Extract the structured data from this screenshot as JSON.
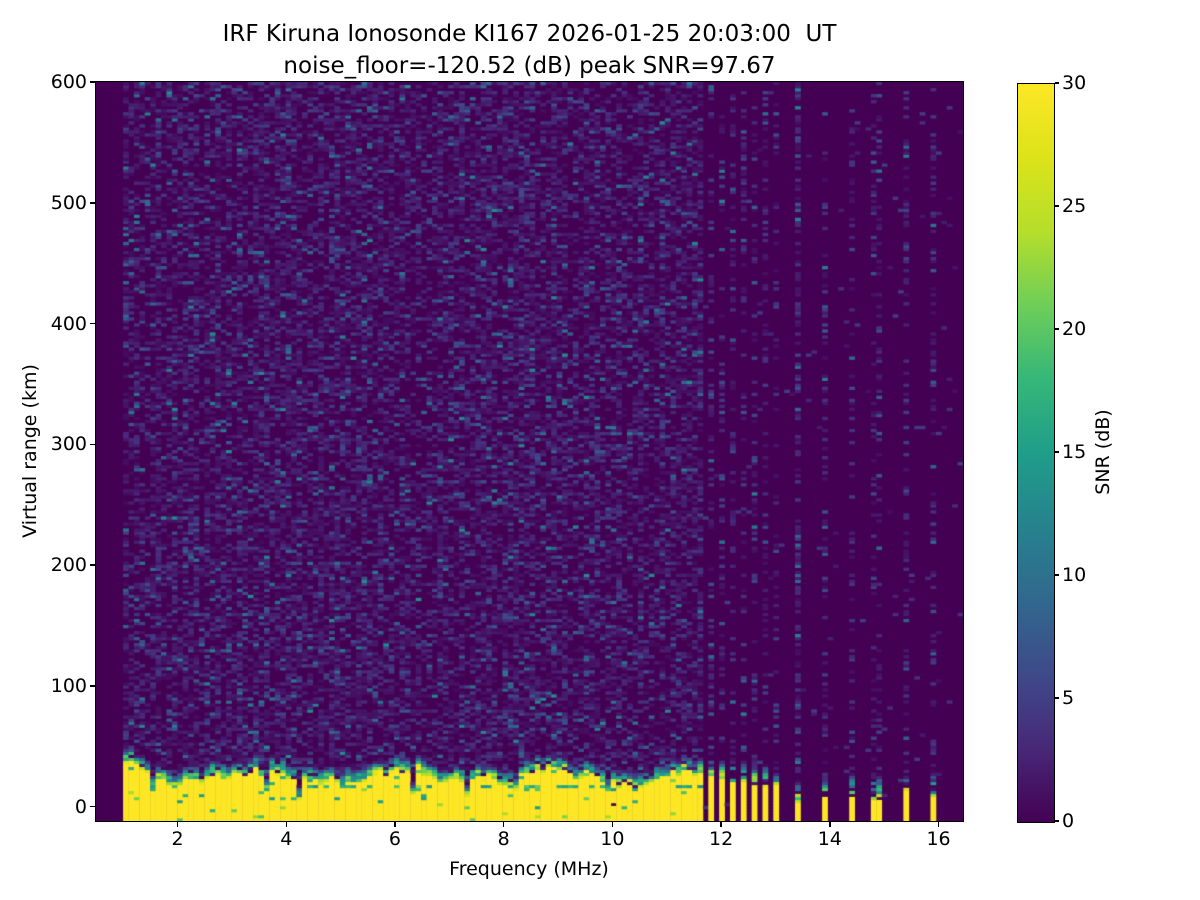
{
  "chart_data": {
    "type": "heatmap",
    "title": "IRF Kiruna Ionosonde KI167 2026-01-25 20:03:00  UT",
    "subtitle": "noise_floor=-120.52 (dB) peak SNR=97.67",
    "station": "IRF Kiruna Ionosonde KI167",
    "timestamp_ut": "2026-01-25 20:03:00 UT",
    "noise_floor_db": -120.52,
    "peak_snr_db": 97.67,
    "xlabel": "Frequency (MHz)",
    "ylabel": "Virtual range (km)",
    "colorbar_label": "SNR (dB)",
    "xlim": [
      0.5,
      16.45
    ],
    "ylim": [
      -12,
      600
    ],
    "clim": [
      0,
      30
    ],
    "x_ticks": [
      2,
      4,
      6,
      8,
      10,
      12,
      14,
      16
    ],
    "y_ticks": [
      0,
      100,
      200,
      300,
      400,
      500,
      600
    ],
    "colorbar_ticks": [
      0,
      5,
      10,
      15,
      20,
      25,
      30
    ],
    "grid": false,
    "legend": "none",
    "colorbar_position": "right",
    "colormap": "viridis",
    "viridis_stops": [
      [
        0.0,
        "#440154"
      ],
      [
        0.1,
        "#482878"
      ],
      [
        0.2,
        "#3e4a89"
      ],
      [
        0.3,
        "#31688e"
      ],
      [
        0.4,
        "#26828e"
      ],
      [
        0.5,
        "#1f9e89"
      ],
      [
        0.6,
        "#35b779"
      ],
      [
        0.7,
        "#6ece58"
      ],
      [
        0.8,
        "#b5de2b"
      ],
      [
        0.9,
        "#dce319"
      ],
      [
        1.0,
        "#fde725"
      ]
    ],
    "content": {
      "description": "Ionogram: strong ground-echo band (SNR ~30 dB, yellow) below ~25-40 km from 1.0 to ~11.7 MHz; band breaks into narrow transmitted-stripe columns 11.8-13.0 MHz and isolated columns near 13.4-15.9 MHz; dense faint speckle noise (1-8 dB) fills 1.0-11.7 MHz at all ranges; flat near-zero background elsewhere with faint full-height noise columns above each stripe.",
      "seed": 20260125,
      "grid_cells": {
        "ncols": 160,
        "nrows": 245
      },
      "data_start_mhz": 1.0,
      "continuous_band_end_mhz": 11.66,
      "ground_band_top_km": 24,
      "low_freq_band_boost": [
        1.5,
        20
      ],
      "band_transition_km": 13,
      "band_notches": [
        [
          1.55,
          12
        ],
        [
          2.45,
          10
        ],
        [
          3.62,
          26
        ],
        [
          4.25,
          20
        ],
        [
          5.05,
          10
        ],
        [
          6.32,
          24
        ],
        [
          7.35,
          22
        ],
        [
          8.2,
          12
        ],
        [
          9.9,
          14
        ]
      ],
      "notch_halfwidth_mhz": 0.09,
      "teal_line": {
        "km": 17.5,
        "from_mhz": 4.3,
        "to_mhz": 11.66
      },
      "anomaly_gaps": [
        {
          "mhz": 10.02,
          "km": 2,
          "halfwidth_mhz": 0.09,
          "halfheight_km": 2.2
        }
      ],
      "stripe_halfwidth_mhz": 0.055,
      "cluster_stripes": [
        [
          11.79,
          24
        ],
        [
          12.01,
          22
        ],
        [
          12.23,
          21
        ],
        [
          12.41,
          20
        ],
        [
          12.61,
          18
        ],
        [
          12.8,
          17
        ],
        [
          13.02,
          16
        ]
      ],
      "isolated_stripes": [
        [
          13.43,
          3
        ],
        [
          13.88,
          7
        ],
        [
          14.37,
          9
        ],
        [
          14.86,
          6
        ],
        [
          15.41,
          12
        ],
        [
          15.9,
          9
        ]
      ],
      "cluster_transition_km": 18,
      "isolated_transition_km": 20,
      "stripe_column_noise_prob": 0.28,
      "dense_column_mhz": 13.43,
      "dense_column_noise_prob": 0.5,
      "left_noise_prob": 0.5,
      "right_noise_prob": 0.013
    }
  }
}
